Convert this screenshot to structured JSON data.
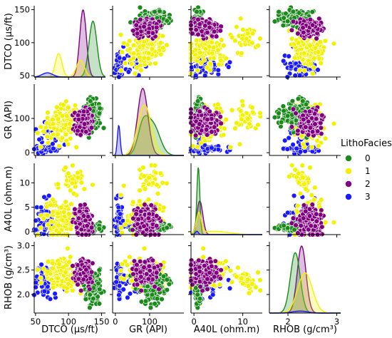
{
  "chart_data": {
    "type": "scatter",
    "layout": "pairplot",
    "variables": [
      {
        "key": "DTCO",
        "label": "DTCO (µs/ft)",
        "range": [
          48,
          156
        ],
        "ticks": [
          50,
          100,
          150
        ],
        "tick_labels": [
          "50",
          "100",
          "150"
        ]
      },
      {
        "key": "GR",
        "label": "GR (API)",
        "range": [
          -8,
          200
        ],
        "ticks": [
          0,
          100
        ],
        "tick_labels": [
          "0",
          "100"
        ]
      },
      {
        "key": "A40L",
        "label": "A40L (ohm.m)",
        "range": [
          -0.6,
          14
        ],
        "ticks": [
          0,
          5,
          10
        ],
        "tick_labels": [
          "0",
          "5",
          "10"
        ]
      },
      {
        "key": "RHOB",
        "label": "RHOB (g/cm³)",
        "range": [
          1.62,
          3.08
        ],
        "ticks": [
          2.0,
          2.5,
          3.0
        ],
        "tick_labels": [
          "2.0",
          "2.5",
          "3.0"
        ]
      }
    ],
    "x_tick_labels": [
      {
        "values": [
          50,
          100,
          150
        ],
        "labels": [
          "50",
          "100",
          "150"
        ]
      },
      {
        "values": [
          0,
          100
        ],
        "labels": [
          "0",
          "100"
        ]
      },
      {
        "values": [
          0,
          10
        ],
        "labels": [
          "0",
          "10"
        ]
      },
      {
        "values": [
          2,
          3
        ],
        "labels": [
          "2",
          "3"
        ]
      }
    ],
    "diagonal": "kde",
    "legend": {
      "title": "LithoFacies",
      "placement": "right"
    },
    "series": [
      {
        "name": "0",
        "color": "#1a8a1a",
        "clusters": [
          {
            "DTCO": 137,
            "GR": 112,
            "A40L": 0.9,
            "RHOB": 2.15,
            "sd": {
              "DTCO": 6,
              "GR": 20,
              "A40L": 0.35,
              "RHOB": 0.16
            },
            "n": 150
          }
        ],
        "kde": {
          "DTCO": [
            [
              137,
              6,
              1
            ]
          ],
          "GR": [
            [
              110,
              20,
              0.6
            ],
            [
              80,
              15,
              0.4
            ]
          ],
          "A40L": [
            [
              0.9,
              0.3,
              1
            ]
          ],
          "RHOB": [
            [
              2.15,
              0.1,
              1
            ]
          ]
        }
      },
      {
        "name": "1",
        "color": "#f2f200",
        "clusters": [
          {
            "DTCO": 85,
            "GR": 80,
            "A40L": 3.0,
            "RHOB": 2.45,
            "sd": {
              "DTCO": 12,
              "GR": 25,
              "A40L": 2.5,
              "RHOB": 0.15
            },
            "n": 110
          },
          {
            "DTCO": 105,
            "GR": 105,
            "A40L": 10.5,
            "RHOB": 2.25,
            "sd": {
              "DTCO": 10,
              "GR": 20,
              "A40L": 1.3,
              "RHOB": 0.1
            },
            "n": 40
          }
        ],
        "kde": {
          "DTCO": [
            [
              85,
              5,
              0.35
            ],
            [
              118,
              6,
              0.3
            ]
          ],
          "GR": [
            [
              85,
              20,
              1
            ]
          ],
          "A40L": [
            [
              1.0,
              0.5,
              0.5
            ],
            [
              4,
              3,
              0.5
            ]
          ],
          "RHOB": [
            [
              2.35,
              0.15,
              1
            ]
          ]
        }
      },
      {
        "name": "2",
        "color": "#800080",
        "clusters": [
          {
            "DTCO": 122,
            "GR": 90,
            "A40L": 2.0,
            "RHOB": 2.45,
            "sd": {
              "DTCO": 6,
              "GR": 18,
              "A40L": 1.5,
              "RHOB": 0.13
            },
            "n": 180
          }
        ],
        "kde": {
          "DTCO": [
            [
              122,
              5,
              1
            ]
          ],
          "GR": [
            [
              80,
              15,
              1
            ]
          ],
          "A40L": [
            [
              1.2,
              0.6,
              1
            ]
          ],
          "RHOB": [
            [
              2.28,
              0.09,
              1
            ]
          ]
        }
      },
      {
        "name": "3",
        "color": "#1a1aff",
        "clusters": [
          {
            "DTCO": 65,
            "GR": 10,
            "A40L": 3.0,
            "RHOB": 2.3,
            "sd": {
              "DTCO": 8,
              "GR": 4,
              "A40L": 2.5,
              "RHOB": 0.15
            },
            "n": 60
          },
          {
            "DTCO": 68,
            "GR": 45,
            "A40L": 1.2,
            "RHOB": 2.2,
            "sd": {
              "DTCO": 10,
              "GR": 20,
              "A40L": 0.6,
              "RHOB": 0.12
            },
            "n": 25
          }
        ],
        "kde": {
          "DTCO": [
            [
              68,
              8,
              0.1
            ]
          ],
          "GR": [
            [
              10,
              4,
              0.12
            ]
          ],
          "A40L": [
            [
              0.6,
              0.3,
              0.05
            ]
          ],
          "RHOB": [
            [
              2.25,
              0.15,
              0.05
            ]
          ]
        }
      }
    ]
  }
}
